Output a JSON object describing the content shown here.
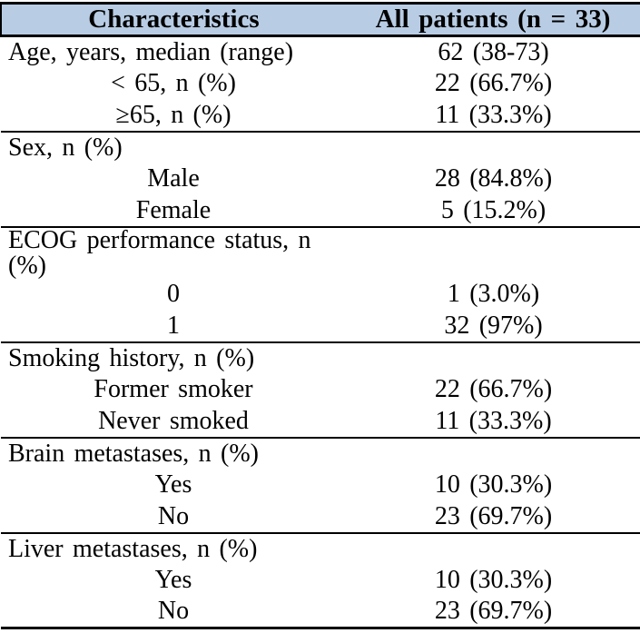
{
  "table": {
    "columns": [
      {
        "label": "Characteristics"
      },
      {
        "label": "All patients (n = 33)"
      }
    ],
    "sections": [
      {
        "rows": [
          {
            "label": "Age, years, median (range)",
            "value": "62 (38-73)",
            "indent": "left"
          },
          {
            "label": "< 65, n (%)",
            "value": "22 (66.7%)",
            "indent": "center"
          },
          {
            "label": "≥65, n (%)",
            "value": "11 (33.3%)",
            "indent": "center"
          }
        ]
      },
      {
        "rows": [
          {
            "label": "Sex, n (%)",
            "value": "",
            "indent": "left"
          },
          {
            "label": "Male",
            "value": "28 (84.8%)",
            "indent": "center"
          },
          {
            "label": "Female",
            "value": "5 (15.2%)",
            "indent": "center"
          }
        ]
      },
      {
        "rows": [
          {
            "label": "ECOG performance status, n (%)",
            "value": "",
            "indent": "left"
          },
          {
            "label": "0",
            "value": "1 (3.0%)",
            "indent": "center"
          },
          {
            "label": "1",
            "value": "32 (97%)",
            "indent": "center"
          }
        ]
      },
      {
        "rows": [
          {
            "label": "Smoking history, n (%)",
            "value": "",
            "indent": "left"
          },
          {
            "label": "Former smoker",
            "value": "22 (66.7%)",
            "indent": "center"
          },
          {
            "label": "Never smoked",
            "value": "11 (33.3%)",
            "indent": "center"
          }
        ]
      },
      {
        "rows": [
          {
            "label": "Brain metastases, n (%)",
            "value": "",
            "indent": "left"
          },
          {
            "label": "Yes",
            "value": "10 (30.3%)",
            "indent": "center"
          },
          {
            "label": "No",
            "value": "23 (69.7%)",
            "indent": "center"
          }
        ]
      },
      {
        "rows": [
          {
            "label": "Liver metastases, n (%)",
            "value": "",
            "indent": "left"
          },
          {
            "label": "Yes",
            "value": "10 (30.3%)",
            "indent": "center"
          },
          {
            "label": "No",
            "value": "23 (69.7%)",
            "indent": "center"
          }
        ]
      }
    ],
    "colors": {
      "header_bg": "#b8cce4",
      "border": "#000000",
      "text": "#000000"
    }
  }
}
